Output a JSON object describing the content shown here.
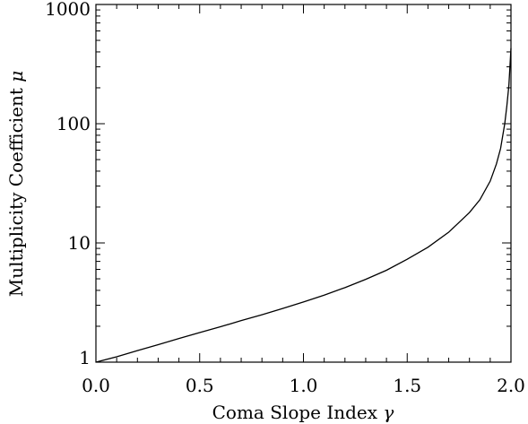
{
  "chart_data": {
    "type": "line",
    "xlabel": "Coma Slope Index",
    "xlabel_symbol": "γ",
    "ylabel": "Multiplicity Coefficient",
    "ylabel_symbol": "μ",
    "xlim": [
      0.0,
      2.0
    ],
    "ylim": [
      1,
      1000
    ],
    "yscale": "log",
    "grid": false,
    "x_ticks": [
      {
        "value": 0.0,
        "label": "0.0"
      },
      {
        "value": 0.5,
        "label": "0.5"
      },
      {
        "value": 1.0,
        "label": "1.0"
      },
      {
        "value": 1.5,
        "label": "1.5"
      },
      {
        "value": 2.0,
        "label": "2.0"
      }
    ],
    "y_ticks": [
      {
        "value": 1,
        "label": "1"
      },
      {
        "value": 10,
        "label": "10"
      },
      {
        "value": 100,
        "label": "100"
      },
      {
        "value": 1000,
        "label": "1000"
      }
    ],
    "series": [
      {
        "color": "#000000",
        "x": [
          0.0,
          0.1,
          0.2,
          0.3,
          0.4,
          0.5,
          0.6,
          0.7,
          0.8,
          0.9,
          1.0,
          1.1,
          1.2,
          1.3,
          1.4,
          1.5,
          1.6,
          1.7,
          1.8,
          1.85,
          1.9,
          1.93,
          1.95,
          1.97,
          1.98,
          1.99,
          1.995,
          2.0
        ],
        "y": [
          0.99,
          1.11,
          1.25,
          1.4,
          1.58,
          1.77,
          1.98,
          2.23,
          2.5,
          2.82,
          3.2,
          3.65,
          4.22,
          4.95,
          5.9,
          7.3,
          9.2,
          12.3,
          18.0,
          23.0,
          33.0,
          46.0,
          62.0,
          100.0,
          140.0,
          210.0,
          300.0,
          430.0
        ]
      }
    ]
  }
}
